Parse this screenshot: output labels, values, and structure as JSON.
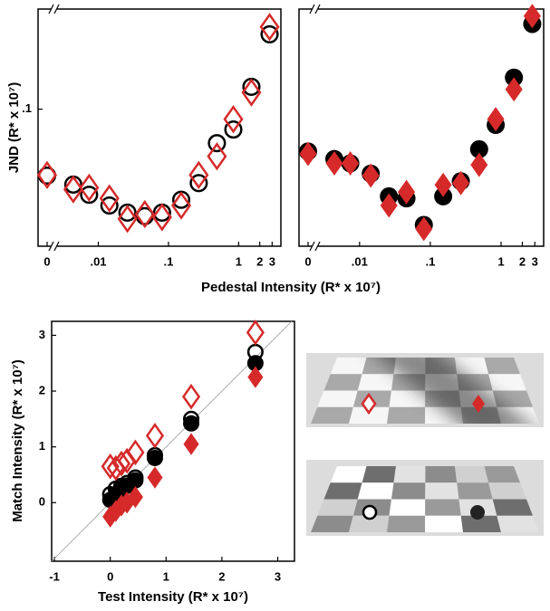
{
  "chart_data": [
    {
      "type": "scatter",
      "ylabel": "JND (R* x 10⁷)",
      "xlabel": "Pedestal Intensity (R* x 10⁷)",
      "xscale": "log",
      "yscale": "log",
      "axis_break": true,
      "xlim": [
        0.003,
        4
      ],
      "ylim": [
        0.004,
        1.05
      ],
      "xticks": [
        0,
        {
          "value": 0.01,
          "label": ".01"
        },
        {
          "value": 0.1,
          "label": ".1"
        },
        1,
        2,
        3
      ],
      "yticks": [
        {
          "value": 0.1,
          "label": ".1"
        }
      ],
      "x": [
        0,
        0.0044,
        0.0074,
        0.0144,
        0.026,
        0.046,
        0.081,
        0.152,
        0.27,
        0.49,
        0.84,
        1.52,
        2.76
      ],
      "series": [
        {
          "color": "#000000",
          "marker": "circle",
          "filled": false,
          "values": [
            0.021,
            0.017,
            0.0134,
            0.0104,
            0.0088,
            0.0081,
            0.0088,
            0.0119,
            0.0176,
            0.045,
            0.062,
            0.169,
            0.58
          ]
        },
        {
          "color": "#d62a2a",
          "marker": "diamond",
          "filled": false,
          "values": [
            0.0213,
            0.0152,
            0.0158,
            0.0123,
            0.0076,
            0.0085,
            0.0079,
            0.0104,
            0.0213,
            0.033,
            0.079,
            0.148,
            0.69
          ]
        }
      ]
    },
    {
      "type": "scatter",
      "xscale": "log",
      "yscale": "log",
      "axis_break": true,
      "xlim": [
        0.003,
        4
      ],
      "ylim": [
        0.004,
        1.05
      ],
      "xticks": [
        0,
        {
          "value": 0.01,
          "label": ".01"
        },
        {
          "value": 0.1,
          "label": ".1"
        },
        1,
        2,
        3
      ],
      "x": [
        0,
        0.0044,
        0.0074,
        0.0144,
        0.026,
        0.046,
        0.081,
        0.152,
        0.27,
        0.49,
        0.84,
        1.52,
        2.76
      ],
      "series": [
        {
          "color": "#000000",
          "marker": "circle",
          "filled": true,
          "values": [
            0.037,
            0.031,
            0.028,
            0.022,
            0.0129,
            0.0123,
            0.0066,
            0.0129,
            0.0184,
            0.039,
            0.069,
            0.21,
            0.74
          ]
        },
        {
          "color": "#d62a2a",
          "marker": "diamond",
          "filled": true,
          "values": [
            0.035,
            0.028,
            0.028,
            0.021,
            0.0104,
            0.0143,
            0.006,
            0.0169,
            0.0176,
            0.027,
            0.079,
            0.159,
            0.89
          ]
        }
      ]
    },
    {
      "type": "scatter",
      "xlabel": "Test Intensity (R* x 10⁷)",
      "ylabel": "Match Intensity (R* x 10⁷)",
      "xlim": [
        -1.05,
        3.3
      ],
      "ylim": [
        -1.05,
        3.25
      ],
      "xticks": [
        -1,
        0,
        1,
        2,
        3
      ],
      "yticks": [
        0,
        1,
        2,
        3
      ],
      "diagonal": true,
      "series": [
        {
          "color": "#000000",
          "marker": "circle",
          "filled": true,
          "x": [
            0,
            0.1,
            0.2,
            0.3,
            0.45,
            0.8,
            1.45,
            2.6
          ],
          "values": [
            0.05,
            0.15,
            0.25,
            0.3,
            0.4,
            0.8,
            1.42,
            2.5
          ]
        },
        {
          "color": "#000000",
          "marker": "circle",
          "filled": false,
          "x": [
            0,
            0.1,
            0.2,
            0.3,
            0.45,
            0.8,
            1.45,
            2.6
          ],
          "values": [
            0.15,
            0.25,
            0.3,
            0.35,
            0.45,
            0.85,
            1.5,
            2.7
          ]
        },
        {
          "color": "#d62a2a",
          "marker": "diamond",
          "filled": true,
          "x": [
            0,
            0.1,
            0.2,
            0.3,
            0.45,
            0.8,
            1.45,
            2.6
          ],
          "values": [
            -0.25,
            -0.15,
            -0.05,
            0,
            0.1,
            0.45,
            1.05,
            2.25
          ]
        },
        {
          "color": "#d62a2a",
          "marker": "diamond",
          "filled": false,
          "x": [
            0,
            0.1,
            0.2,
            0.3,
            0.45,
            0.8,
            1.45,
            2.6
          ],
          "values": [
            0.65,
            0.62,
            0.7,
            0.75,
            0.9,
            1.2,
            1.9,
            3.05
          ]
        }
      ]
    }
  ]
}
